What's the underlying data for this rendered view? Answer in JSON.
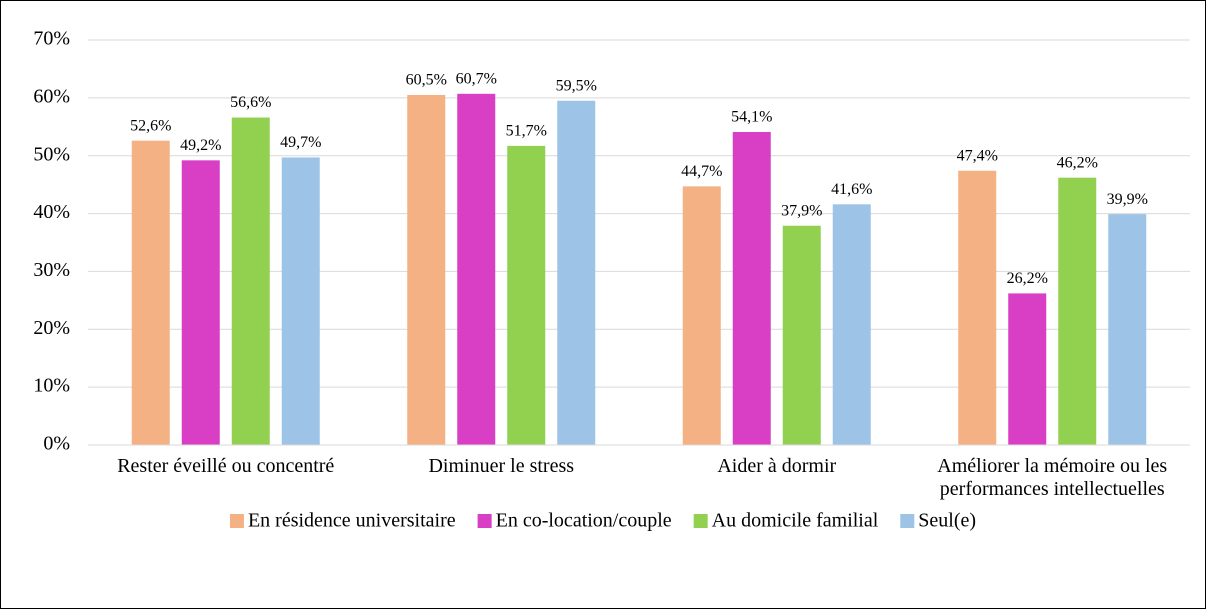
{
  "chart_data": {
    "type": "bar",
    "categories": [
      "Rester éveillé ou concentré",
      "Diminuer le stress",
      "Aider à dormir",
      "Améliorer la mémoire ou les performances intellectuelles"
    ],
    "series": [
      {
        "name": "En résidence universitaire",
        "color": "#f4b183",
        "values": [
          52.6,
          60.5,
          44.7,
          47.4
        ],
        "value_labels": [
          "52,6%",
          "60,5%",
          "44,7%",
          "47,4%"
        ]
      },
      {
        "name": "En co-location/couple",
        "color": "#d83fc4",
        "values": [
          49.2,
          60.7,
          54.1,
          26.2
        ],
        "value_labels": [
          "49,2%",
          "60,7%",
          "54,1%",
          "26,2%"
        ]
      },
      {
        "name": "Au domicile familial",
        "color": "#92d050",
        "values": [
          56.6,
          51.7,
          37.9,
          46.2
        ],
        "value_labels": [
          "56,6%",
          "51,7%",
          "37,9%",
          "46,2%"
        ]
      },
      {
        "name": "Seul(e)",
        "color": "#9dc3e6",
        "values": [
          49.7,
          59.5,
          41.6,
          39.9
        ],
        "value_labels": [
          "49,7%",
          "59,5%",
          "41,6%",
          "39,9%"
        ]
      }
    ],
    "ylim": [
      0,
      70
    ],
    "yticks": [
      {
        "value": 0,
        "label": "0%"
      },
      {
        "value": 10,
        "label": "10%"
      },
      {
        "value": 20,
        "label": "20%"
      },
      {
        "value": 30,
        "label": "30%"
      },
      {
        "value": 40,
        "label": "40%"
      },
      {
        "value": 50,
        "label": "50%"
      },
      {
        "value": 60,
        "label": "60%"
      },
      {
        "value": 70,
        "label": "70%"
      }
    ],
    "grid": true,
    "legend": "bottom"
  }
}
